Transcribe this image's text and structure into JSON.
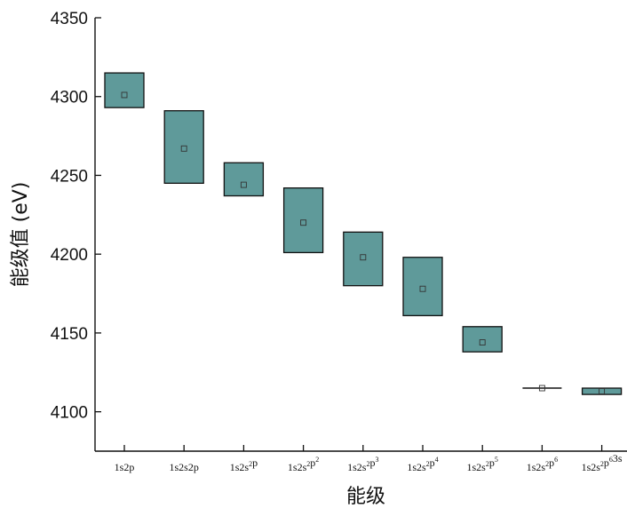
{
  "chart_data": {
    "type": "box",
    "xlabel": "能级",
    "ylabel": "能级值 (eV)",
    "ylim": [
      4075,
      4350
    ],
    "yticks": [
      4100,
      4150,
      4200,
      4250,
      4300,
      4350
    ],
    "grid": false,
    "categories": [
      {
        "base": "1s2p",
        "sup": ""
      },
      {
        "base": "1s2s2p",
        "sup": ""
      },
      {
        "base": "1s2s",
        "sup": "2",
        "rest": "p"
      },
      {
        "base": "1s2s",
        "sup": "2",
        "rest": "p",
        "sup2": "2"
      },
      {
        "base": "1s2s",
        "sup": "2",
        "rest": "p",
        "sup2": "3"
      },
      {
        "base": "1s2s",
        "sup": "2",
        "rest": "p",
        "sup2": "4"
      },
      {
        "base": "1s2s",
        "sup": "2",
        "rest": "p",
        "sup2": "5"
      },
      {
        "base": "1s2s",
        "sup": "2",
        "rest": "p",
        "sup2": "6"
      },
      {
        "base": "1s2s",
        "sup": "2",
        "rest": "p",
        "sup2": "6",
        "tail": "3s"
      }
    ],
    "series": [
      {
        "low": [
          4293,
          4245,
          4237,
          4201,
          4180,
          4161,
          4138,
          4115,
          4111
        ],
        "high": [
          4315,
          4291,
          4258,
          4242,
          4214,
          4198,
          4154,
          4115,
          4115
        ],
        "mean": [
          4301,
          4267,
          4244,
          4220,
          4198,
          4178,
          4144,
          4115,
          4113
        ]
      }
    ],
    "bar_color": "#5f9a9a"
  }
}
